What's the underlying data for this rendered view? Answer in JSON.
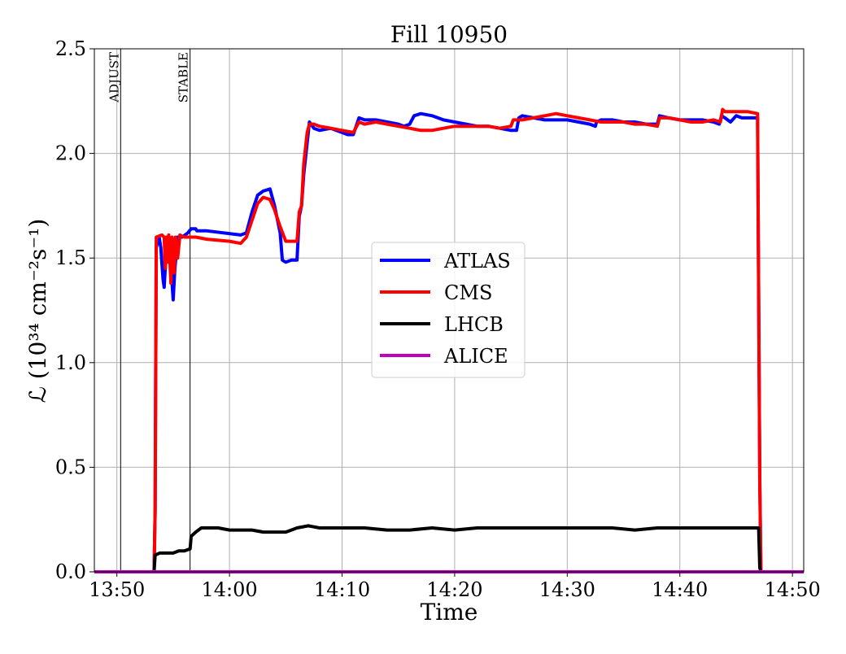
{
  "chart_data": {
    "type": "line",
    "title": "Fill 10950",
    "xlabel": "Time",
    "ylabel": "ℒ (10³⁴ cm⁻²s⁻¹)",
    "x_unit": "time of day (HH:MM)",
    "xlim": [
      "13:48:00",
      "14:51:00"
    ],
    "ylim": [
      0,
      2.5
    ],
    "x_ticks": [
      "13:50",
      "14:00",
      "14:10",
      "14:20",
      "14:30",
      "14:40",
      "14:50"
    ],
    "y_ticks": [
      "0.0",
      "0.5",
      "1.0",
      "1.5",
      "2.0",
      "2.5"
    ],
    "grid": true,
    "legend_position": "center",
    "markers": [
      {
        "label": "ADJUST",
        "time": "13:50:20"
      },
      {
        "label": "STABLE",
        "time": "13:56:30"
      }
    ],
    "series": [
      {
        "name": "ATLAS",
        "color": "#0000ff",
        "points": [
          [
            "13:48:00",
            0
          ],
          [
            "13:53:18",
            0
          ],
          [
            "13:53:24",
            0.3
          ],
          [
            "13:53:30",
            1.55
          ],
          [
            "13:53:45",
            1.6
          ],
          [
            "13:53:54",
            1.55
          ],
          [
            "13:54:06",
            1.4
          ],
          [
            "13:54:12",
            1.36
          ],
          [
            "13:54:21",
            1.5
          ],
          [
            "13:54:33",
            1.56
          ],
          [
            "13:54:45",
            1.5
          ],
          [
            "13:55:00",
            1.3
          ],
          [
            "13:55:09",
            1.45
          ],
          [
            "13:55:24",
            1.6
          ],
          [
            "13:55:48",
            1.6
          ],
          [
            "13:56:18",
            1.62
          ],
          [
            "13:56:36",
            1.64
          ],
          [
            "13:57:00",
            1.64
          ],
          [
            "13:57:06",
            1.63
          ],
          [
            "13:58:00",
            1.63
          ],
          [
            "14:01:00",
            1.61
          ],
          [
            "14:01:30",
            1.62
          ],
          [
            "14:02:00",
            1.72
          ],
          [
            "14:02:30",
            1.8
          ],
          [
            "14:03:00",
            1.82
          ],
          [
            "14:03:36",
            1.83
          ],
          [
            "14:04:00",
            1.75
          ],
          [
            "14:04:30",
            1.62
          ],
          [
            "14:04:42",
            1.49
          ],
          [
            "14:05:00",
            1.48
          ],
          [
            "14:05:30",
            1.49
          ],
          [
            "14:06:00",
            1.49
          ],
          [
            "14:06:12",
            1.7
          ],
          [
            "14:06:24",
            1.75
          ],
          [
            "14:06:36",
            1.9
          ],
          [
            "14:06:54",
            2.05
          ],
          [
            "14:07:06",
            2.15
          ],
          [
            "14:07:30",
            2.12
          ],
          [
            "14:08:00",
            2.11
          ],
          [
            "14:09:00",
            2.12
          ],
          [
            "14:10:00",
            2.1
          ],
          [
            "14:10:30",
            2.09
          ],
          [
            "14:11:00",
            2.09
          ],
          [
            "14:11:30",
            2.17
          ],
          [
            "14:12:00",
            2.16
          ],
          [
            "14:13:00",
            2.16
          ],
          [
            "14:14:00",
            2.15
          ],
          [
            "14:15:00",
            2.14
          ],
          [
            "14:15:30",
            2.13
          ],
          [
            "14:16:00",
            2.14
          ],
          [
            "14:16:24",
            2.18
          ],
          [
            "14:17:00",
            2.19
          ],
          [
            "14:18:00",
            2.18
          ],
          [
            "14:19:00",
            2.16
          ],
          [
            "14:20:00",
            2.15
          ],
          [
            "14:21:00",
            2.14
          ],
          [
            "14:22:00",
            2.13
          ],
          [
            "14:23:00",
            2.13
          ],
          [
            "14:24:00",
            2.12
          ],
          [
            "14:25:00",
            2.11
          ],
          [
            "14:25:30",
            2.11
          ],
          [
            "14:25:42",
            2.17
          ],
          [
            "14:26:00",
            2.18
          ],
          [
            "14:27:00",
            2.17
          ],
          [
            "14:28:00",
            2.16
          ],
          [
            "14:29:00",
            2.16
          ],
          [
            "14:30:00",
            2.16
          ],
          [
            "14:31:00",
            2.15
          ],
          [
            "14:32:00",
            2.14
          ],
          [
            "14:32:30",
            2.13
          ],
          [
            "14:32:36",
            2.15
          ],
          [
            "14:33:00",
            2.16
          ],
          [
            "14:34:00",
            2.16
          ],
          [
            "14:35:00",
            2.15
          ],
          [
            "14:36:00",
            2.15
          ],
          [
            "14:37:00",
            2.14
          ],
          [
            "14:38:00",
            2.14
          ],
          [
            "14:38:12",
            2.18
          ],
          [
            "14:39:00",
            2.17
          ],
          [
            "14:40:00",
            2.16
          ],
          [
            "14:41:00",
            2.16
          ],
          [
            "14:42:00",
            2.16
          ],
          [
            "14:43:00",
            2.15
          ],
          [
            "14:43:30",
            2.14
          ],
          [
            "14:43:42",
            2.18
          ],
          [
            "14:44:00",
            2.17
          ],
          [
            "14:44:30",
            2.15
          ],
          [
            "14:45:00",
            2.18
          ],
          [
            "14:45:30",
            2.17
          ],
          [
            "14:46:00",
            2.17
          ],
          [
            "14:46:54",
            2.17
          ],
          [
            "14:47:06",
            0.45
          ],
          [
            "14:47:12",
            0
          ],
          [
            "14:51:00",
            0
          ]
        ]
      },
      {
        "name": "CMS",
        "color": "#ff0000",
        "points": [
          [
            "13:48:00",
            0
          ],
          [
            "13:53:18",
            0
          ],
          [
            "13:53:24",
            0.28
          ],
          [
            "13:53:30",
            1.6
          ],
          [
            "13:54:00",
            1.61
          ],
          [
            "13:54:12",
            1.6
          ],
          [
            "13:54:18",
            1.45
          ],
          [
            "13:54:24",
            1.6
          ],
          [
            "13:54:30",
            1.48
          ],
          [
            "13:54:36",
            1.61
          ],
          [
            "13:54:48",
            1.38
          ],
          [
            "13:54:54",
            1.6
          ],
          [
            "13:55:06",
            1.43
          ],
          [
            "13:55:12",
            1.6
          ],
          [
            "13:55:24",
            1.5
          ],
          [
            "13:55:36",
            1.61
          ],
          [
            "13:56:00",
            1.6
          ],
          [
            "13:57:00",
            1.6
          ],
          [
            "13:58:00",
            1.59
          ],
          [
            "14:00:00",
            1.58
          ],
          [
            "14:01:00",
            1.57
          ],
          [
            "14:01:30",
            1.6
          ],
          [
            "14:02:00",
            1.68
          ],
          [
            "14:02:30",
            1.76
          ],
          [
            "14:03:00",
            1.79
          ],
          [
            "14:03:36",
            1.78
          ],
          [
            "14:04:00",
            1.73
          ],
          [
            "14:04:30",
            1.65
          ],
          [
            "14:05:00",
            1.58
          ],
          [
            "14:05:30",
            1.58
          ],
          [
            "14:06:00",
            1.58
          ],
          [
            "14:06:12",
            1.72
          ],
          [
            "14:06:24",
            1.75
          ],
          [
            "14:06:36",
            1.95
          ],
          [
            "14:06:54",
            2.1
          ],
          [
            "14:07:06",
            2.14
          ],
          [
            "14:07:30",
            2.14
          ],
          [
            "14:08:00",
            2.13
          ],
          [
            "14:09:00",
            2.12
          ],
          [
            "14:10:00",
            2.11
          ],
          [
            "14:11:00",
            2.1
          ],
          [
            "14:11:30",
            2.15
          ],
          [
            "14:12:00",
            2.14
          ],
          [
            "14:13:00",
            2.15
          ],
          [
            "14:14:00",
            2.14
          ],
          [
            "14:15:00",
            2.13
          ],
          [
            "14:16:00",
            2.12
          ],
          [
            "14:17:00",
            2.11
          ],
          [
            "14:18:00",
            2.11
          ],
          [
            "14:19:00",
            2.12
          ],
          [
            "14:20:00",
            2.13
          ],
          [
            "14:21:00",
            2.13
          ],
          [
            "14:22:00",
            2.13
          ],
          [
            "14:23:00",
            2.13
          ],
          [
            "14:24:00",
            2.12
          ],
          [
            "14:25:00",
            2.13
          ],
          [
            "14:25:12",
            2.16
          ],
          [
            "14:26:00",
            2.16
          ],
          [
            "14:27:00",
            2.17
          ],
          [
            "14:28:00",
            2.18
          ],
          [
            "14:29:00",
            2.19
          ],
          [
            "14:30:00",
            2.18
          ],
          [
            "14:31:00",
            2.17
          ],
          [
            "14:32:00",
            2.16
          ],
          [
            "14:33:00",
            2.15
          ],
          [
            "14:34:00",
            2.15
          ],
          [
            "14:35:00",
            2.15
          ],
          [
            "14:36:00",
            2.14
          ],
          [
            "14:37:00",
            2.14
          ],
          [
            "14:38:00",
            2.13
          ],
          [
            "14:38:12",
            2.17
          ],
          [
            "14:39:00",
            2.17
          ],
          [
            "14:40:00",
            2.16
          ],
          [
            "14:41:00",
            2.15
          ],
          [
            "14:42:00",
            2.15
          ],
          [
            "14:43:00",
            2.16
          ],
          [
            "14:43:36",
            2.15
          ],
          [
            "14:43:48",
            2.21
          ],
          [
            "14:44:00",
            2.2
          ],
          [
            "14:45:00",
            2.2
          ],
          [
            "14:46:00",
            2.2
          ],
          [
            "14:46:54",
            2.19
          ],
          [
            "14:47:06",
            0.42
          ],
          [
            "14:47:12",
            0
          ],
          [
            "14:51:00",
            0
          ]
        ]
      },
      {
        "name": "LHCB",
        "color": "#000000",
        "points": [
          [
            "13:48:00",
            0
          ],
          [
            "13:53:18",
            0
          ],
          [
            "13:53:24",
            0.08
          ],
          [
            "13:53:48",
            0.09
          ],
          [
            "13:54:30",
            0.09
          ],
          [
            "13:55:00",
            0.09
          ],
          [
            "13:55:30",
            0.1
          ],
          [
            "13:56:00",
            0.1
          ],
          [
            "13:56:30",
            0.11
          ],
          [
            "13:56:36",
            0.17
          ],
          [
            "13:57:00",
            0.19
          ],
          [
            "13:57:30",
            0.21
          ],
          [
            "13:58:00",
            0.21
          ],
          [
            "13:59:00",
            0.21
          ],
          [
            "14:00:00",
            0.2
          ],
          [
            "14:01:00",
            0.2
          ],
          [
            "14:02:00",
            0.2
          ],
          [
            "14:03:00",
            0.19
          ],
          [
            "14:04:00",
            0.19
          ],
          [
            "14:05:00",
            0.19
          ],
          [
            "14:05:30",
            0.2
          ],
          [
            "14:06:00",
            0.21
          ],
          [
            "14:07:00",
            0.22
          ],
          [
            "14:08:00",
            0.21
          ],
          [
            "14:09:00",
            0.21
          ],
          [
            "14:10:00",
            0.21
          ],
          [
            "14:12:00",
            0.21
          ],
          [
            "14:14:00",
            0.2
          ],
          [
            "14:16:00",
            0.2
          ],
          [
            "14:18:00",
            0.21
          ],
          [
            "14:20:00",
            0.2
          ],
          [
            "14:22:00",
            0.21
          ],
          [
            "14:24:00",
            0.21
          ],
          [
            "14:26:00",
            0.21
          ],
          [
            "14:28:00",
            0.21
          ],
          [
            "14:30:00",
            0.21
          ],
          [
            "14:32:00",
            0.21
          ],
          [
            "14:34:00",
            0.21
          ],
          [
            "14:36:00",
            0.2
          ],
          [
            "14:38:00",
            0.21
          ],
          [
            "14:40:00",
            0.21
          ],
          [
            "14:42:00",
            0.21
          ],
          [
            "14:44:00",
            0.21
          ],
          [
            "14:46:00",
            0.21
          ],
          [
            "14:47:00",
            0.21
          ],
          [
            "14:47:06",
            0.02
          ],
          [
            "14:47:12",
            0
          ],
          [
            "14:51:00",
            0
          ]
        ]
      },
      {
        "name": "ALICE",
        "color": "#bf00bf",
        "points": [
          [
            "13:48:00",
            0
          ],
          [
            "14:51:00",
            0
          ]
        ]
      }
    ]
  }
}
